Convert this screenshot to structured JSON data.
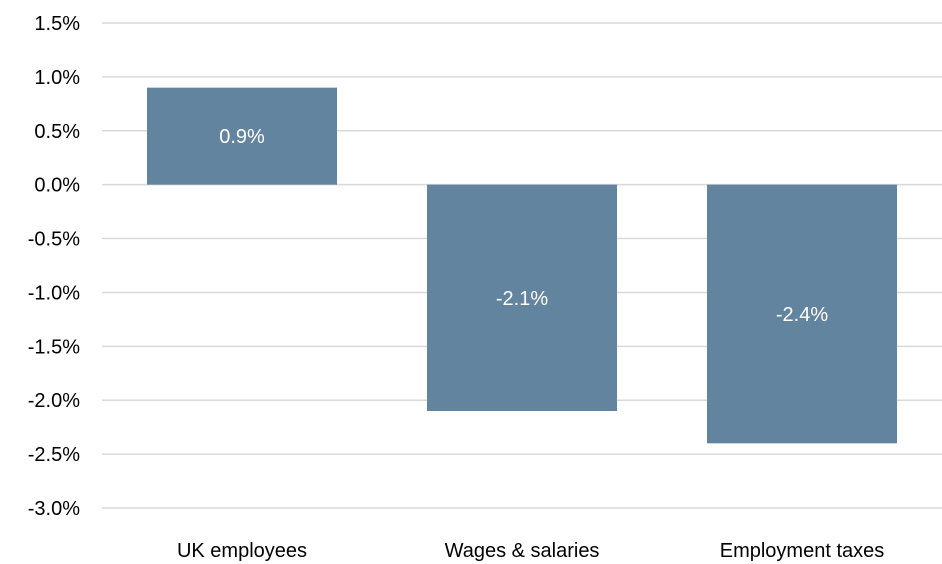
{
  "chart_data": {
    "type": "bar",
    "title": "",
    "xlabel": "",
    "ylabel": "",
    "categories": [
      "UK employees",
      "Wages & salaries",
      "Employment taxes"
    ],
    "values": [
      0.9,
      -2.1,
      -2.4
    ],
    "data_labels": [
      "0.9%",
      "-2.1%",
      "-2.4%"
    ],
    "ylim": [
      -3.0,
      1.5
    ],
    "y_ticks": [
      1.5,
      1.0,
      0.5,
      0.0,
      -0.5,
      -1.0,
      -1.5,
      -2.0,
      -2.5,
      -3.0
    ],
    "y_tick_labels": [
      "1.5%",
      "1.0%",
      "0.5%",
      "0.0%",
      "-0.5%",
      "-1.0%",
      "-1.5%",
      "-2.0%",
      "-2.5%",
      "-3.0%"
    ],
    "grid": true,
    "legend": "none",
    "bar_color": "#62849e",
    "gridline_color": "#d9d9d9",
    "label_color": "#ffffff"
  }
}
